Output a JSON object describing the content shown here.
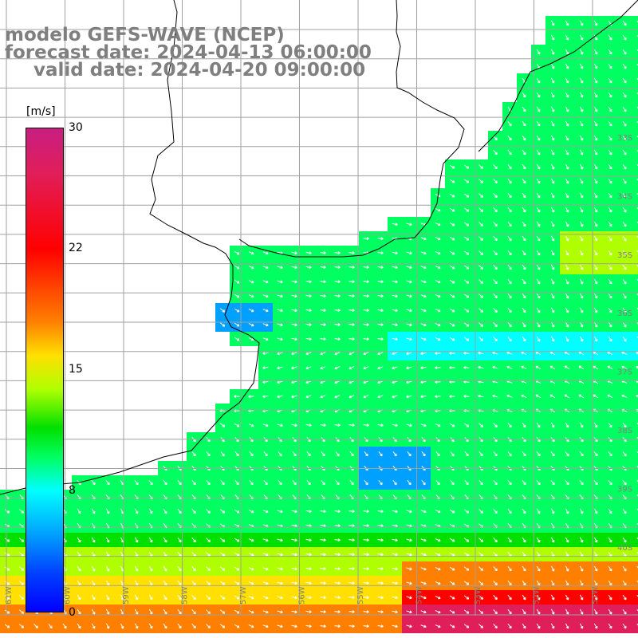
{
  "title": {
    "line1": "modelo GEFS-WAVE (NCEP)",
    "line2": "forecast date: 2024-04-13 06:00:00",
    "line3": "valid date: 2024-04-20 09:00:00"
  },
  "colorbar": {
    "unit": "[m/s]",
    "ticks": [
      "30",
      "22",
      "15",
      "8",
      "0"
    ],
    "vmin": 0,
    "vmax": 30,
    "colors": [
      "#0000ff",
      "#0040ff",
      "#00a0ff",
      "#00ffff",
      "#00ff60",
      "#00e000",
      "#b0ff00",
      "#ffe000",
      "#ff8000",
      "#ff0000",
      "#e01e5a",
      "#c81e82"
    ]
  },
  "map": {
    "lon_labels": [
      "61W",
      "60W",
      "59W",
      "58W",
      "57W",
      "56W",
      "55W",
      "54W",
      "53W",
      "52W",
      "51W"
    ],
    "lat_labels": [
      "33S",
      "34S",
      "35S",
      "36S",
      "37S",
      "38S",
      "39S",
      "40S"
    ],
    "land_color": "#ffffff",
    "grid_color": "#a0a0a0"
  }
}
